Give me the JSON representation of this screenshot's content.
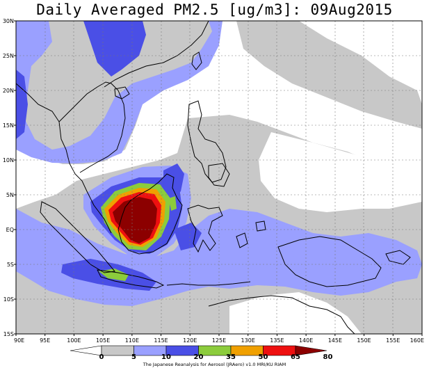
{
  "title": "Daily Averaged PM2.5 [ug/m3]: 09Aug2015",
  "credit": "The Japanese Reanalysis for Aerosol (JRAero) v1.0 MRI/KU RIAM",
  "axes": {
    "lat_ticks": [
      "30N",
      "25N",
      "20N",
      "15N",
      "10N",
      "5N",
      "EQ",
      "5S",
      "10S",
      "15S"
    ],
    "lon_ticks": [
      "90E",
      "95E",
      "100E",
      "105E",
      "110E",
      "115E",
      "120E",
      "125E",
      "130E",
      "135E",
      "140E",
      "145E",
      "150E",
      "155E",
      "160E"
    ],
    "lat_range": [
      -15,
      30
    ],
    "lon_range": [
      90,
      160
    ]
  },
  "colorbar": {
    "labels": [
      "0",
      "5",
      "10",
      "20",
      "35",
      "50",
      "65",
      "80"
    ],
    "colors": [
      "#ffffff",
      "#c8c8c8",
      "#9aa0ff",
      "#4a4fe6",
      "#8ccc3c",
      "#f0a000",
      "#ee1010",
      "#8c0000"
    ]
  },
  "colors": {
    "land_line": "#000000",
    "background": "#ffffff",
    "c5": "#c8c8c8",
    "c10": "#9aa0ff",
    "c20": "#4a4fe6",
    "c35": "#8ccc3c",
    "c50": "#f0a000",
    "c65": "#ee1010",
    "c80": "#8c0000"
  }
}
